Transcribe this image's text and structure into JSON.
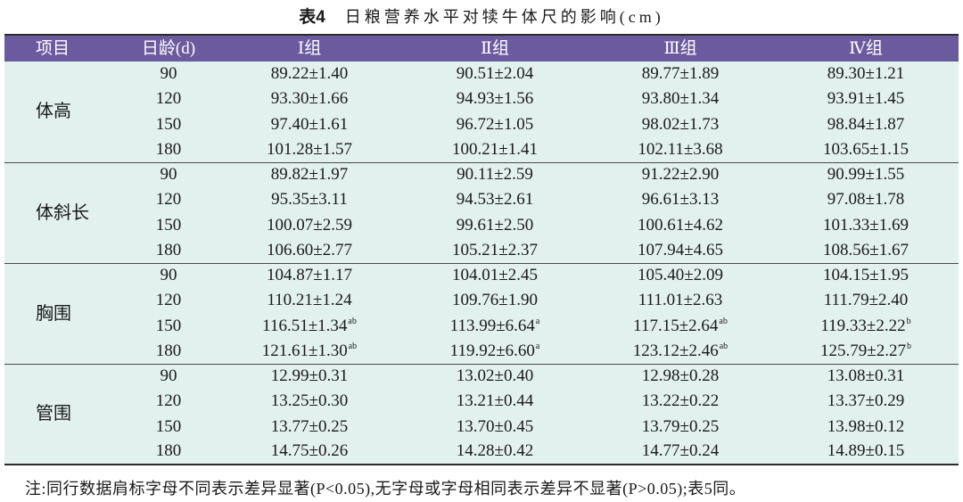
{
  "colors": {
    "header_bg": "#6a5b9f",
    "body_bg": "#e2f1ee",
    "rule": "#2b2b2b"
  },
  "chart_data": {
    "type": "table",
    "title_label": "表4",
    "title": "日粮营养水平对犊牛体尺的影响(cm)",
    "columns": [
      "项目",
      "日龄(d)",
      "Ⅰ组",
      "Ⅱ组",
      "Ⅲ组",
      "Ⅳ组"
    ],
    "groups": [
      {
        "label": "体高",
        "rows": [
          {
            "day": 90,
            "values": [
              "89.22±1.40",
              "90.51±2.04",
              "89.77±1.89",
              "89.30±1.21"
            ]
          },
          {
            "day": 120,
            "values": [
              "93.30±1.66",
              "94.93±1.56",
              "93.80±1.34",
              "93.91±1.45"
            ]
          },
          {
            "day": 150,
            "values": [
              "97.40±1.61",
              "96.72±1.05",
              "98.02±1.73",
              "98.84±1.87"
            ]
          },
          {
            "day": 180,
            "values": [
              "101.28±1.57",
              "100.21±1.41",
              "102.11±3.68",
              "103.65±1.15"
            ]
          }
        ]
      },
      {
        "label": "体斜长",
        "rows": [
          {
            "day": 90,
            "values": [
              "89.82±1.97",
              "90.11±2.59",
              "91.22±2.90",
              "90.99±1.55"
            ]
          },
          {
            "day": 120,
            "values": [
              "95.35±3.11",
              "94.53±2.61",
              "96.61±3.13",
              "97.08±1.78"
            ]
          },
          {
            "day": 150,
            "values": [
              "100.07±2.59",
              "99.61±2.50",
              "100.61±4.62",
              "101.33±1.69"
            ]
          },
          {
            "day": 180,
            "values": [
              "106.60±2.77",
              "105.21±2.37",
              "107.94±4.65",
              "108.56±1.67"
            ]
          }
        ]
      },
      {
        "label": "胸围",
        "rows": [
          {
            "day": 90,
            "values": [
              "104.87±1.17",
              "104.01±2.45",
              "105.40±2.09",
              "104.15±1.95"
            ]
          },
          {
            "day": 120,
            "values": [
              "110.21±1.24",
              "109.76±1.90",
              "111.01±2.63",
              "111.79±2.40"
            ]
          },
          {
            "day": 150,
            "values": [
              "116.51±1.34",
              "113.99±6.64",
              "117.15±2.64",
              "119.33±2.22"
            ],
            "sup": [
              "ab",
              "a",
              "ab",
              "b"
            ]
          },
          {
            "day": 180,
            "values": [
              "121.61±1.30",
              "119.92±6.60",
              "123.12±2.46",
              "125.79±2.27"
            ],
            "sup": [
              "ab",
              "a",
              "ab",
              "b"
            ]
          }
        ]
      },
      {
        "label": "管围",
        "rows": [
          {
            "day": 90,
            "values": [
              "12.99±0.31",
              "13.02±0.40",
              "12.98±0.28",
              "13.08±0.31"
            ]
          },
          {
            "day": 120,
            "values": [
              "13.25±0.30",
              "13.21±0.44",
              "13.22±0.22",
              "13.37±0.29"
            ]
          },
          {
            "day": 150,
            "values": [
              "13.77±0.25",
              "13.70±0.45",
              "13.79±0.25",
              "13.98±0.12"
            ]
          },
          {
            "day": 180,
            "values": [
              "14.75±0.26",
              "14.28±0.42",
              "14.77±0.24",
              "14.89±0.15"
            ]
          }
        ]
      }
    ],
    "note": "注:同行数据肩标字母不同表示差异显著(P<0.05),无字母或字母相同表示差异不显著(P>0.05);表5同。"
  }
}
